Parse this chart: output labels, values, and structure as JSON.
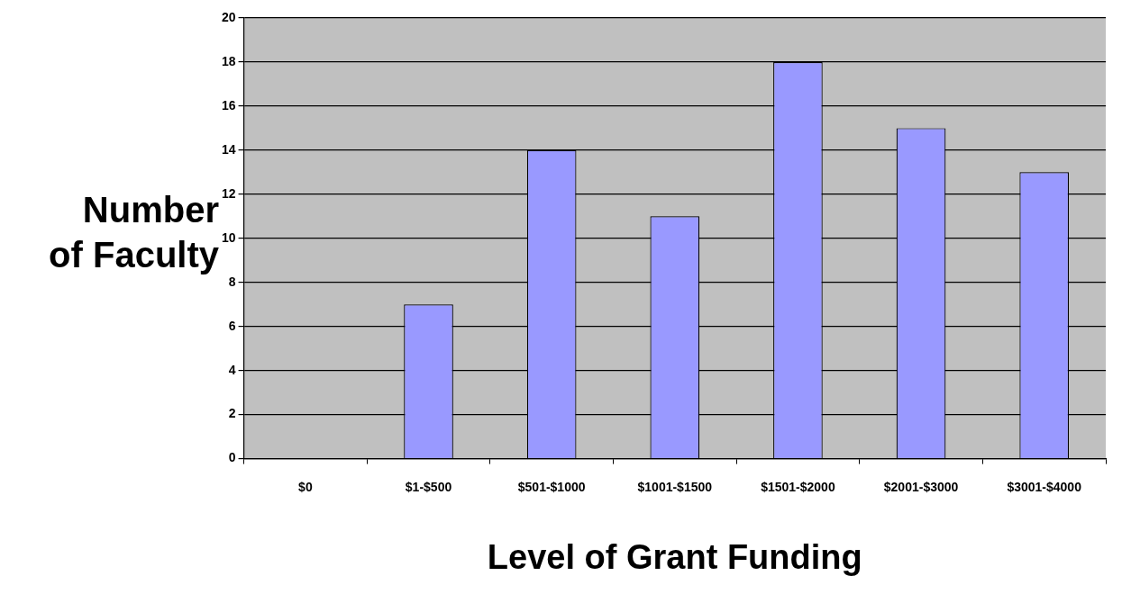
{
  "chart_data": {
    "type": "bar",
    "xlabel": "Level of Grant Funding",
    "ylabel": "Number\nof Faculty",
    "categories": [
      "$0",
      "$1-$500",
      "$501-$1000",
      "$1001-$1500",
      "$1501-$2000",
      "$2001-$3000",
      "$3001-$4000"
    ],
    "values": [
      0,
      7,
      14,
      11,
      18,
      15,
      13
    ],
    "color": "#9999ff",
    "ylim": [
      0,
      20
    ],
    "yticks": [
      0,
      2,
      4,
      6,
      8,
      10,
      12,
      14,
      16,
      18,
      20
    ],
    "grid": "y",
    "legend": false
  }
}
